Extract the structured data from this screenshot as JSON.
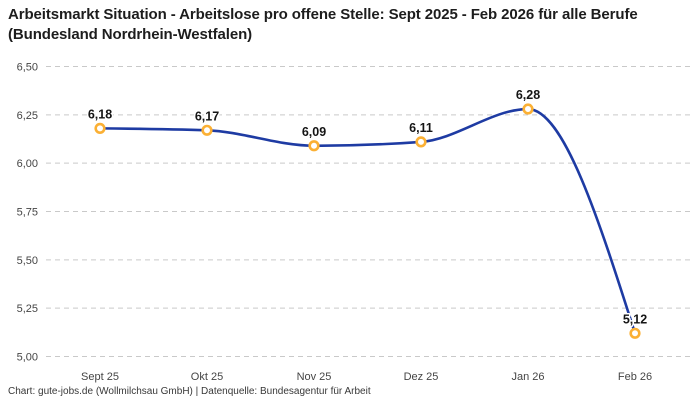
{
  "title": "Arbeitsmarkt Situation - Arbeitslose pro offene Stelle: Sept 2025 - Feb 2026 für alle Berufe (Bundesland Nordrhein-Westfalen)",
  "footer": "Chart: gute-jobs.de (Wollmilchsau GmbH) | Datenquelle: Bundesagentur für Arbeit",
  "colors": {
    "line": "#1e3ba3",
    "marker_stroke": "#fbb034",
    "marker_fill": "#ffffff",
    "grid": "#c9c9c9",
    "title_text": "#1d1d1d",
    "axis_text": "#454545",
    "point_label_text": "#151515"
  },
  "chart_data": {
    "type": "line",
    "title": "Arbeitsmarkt Situation - Arbeitslose pro offene Stelle: Sept 2025 - Feb 2026 für alle Berufe (Bundesland Nordrhein-Westfalen)",
    "xlabel": "",
    "ylabel": "",
    "categories": [
      "Sept 25",
      "Okt 25",
      "Nov 25",
      "Dez 25",
      "Jan 26",
      "Feb 26"
    ],
    "values": [
      6.18,
      6.17,
      6.09,
      6.11,
      6.28,
      5.12
    ],
    "point_labels": [
      "6,18",
      "6,17",
      "6,09",
      "6,11",
      "6,28",
      "5,12"
    ],
    "y_tick_values": [
      6.5,
      6.25,
      6.0,
      5.75,
      5.5,
      5.25,
      5.0
    ],
    "y_tick_labels": [
      "6,50",
      "6,25",
      "6,00",
      "5,75",
      "5,50",
      "5,25",
      "5,00"
    ],
    "ylim": [
      5.0,
      6.5
    ],
    "grid": "horizontal-dashed",
    "legend": "none",
    "interpolation": "monotone"
  }
}
